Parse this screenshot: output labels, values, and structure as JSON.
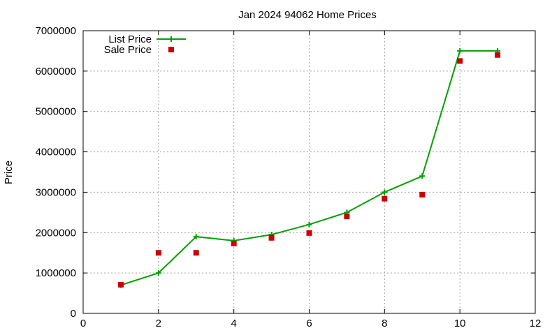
{
  "chart_data": {
    "type": "line",
    "title": "Jan 2024 94062 Home Prices",
    "xlabel": "",
    "ylabel": "Price",
    "xlim": [
      0,
      12
    ],
    "ylim": [
      0,
      7000000
    ],
    "x_ticks": [
      "0",
      "2",
      "4",
      "6",
      "8",
      "10",
      "12"
    ],
    "y_ticks": [
      "0",
      "1000000",
      "2000000",
      "3000000",
      "4000000",
      "5000000",
      "6000000",
      "7000000"
    ],
    "grid": true,
    "legend_position": "top-left",
    "series": [
      {
        "name": "List Price",
        "style": "line-with-plus-markers",
        "color": "#00a000",
        "x": [
          1,
          2,
          3,
          4,
          5,
          6,
          7,
          8,
          9,
          10,
          11
        ],
        "y": [
          700000,
          1000000,
          1900000,
          1800000,
          1950000,
          2200000,
          2500000,
          3000000,
          3400000,
          6500000,
          6500000
        ]
      },
      {
        "name": "Sale Price",
        "style": "square-markers",
        "color": "#cc0000",
        "x": [
          1,
          2,
          3,
          4,
          5,
          6,
          7,
          8,
          9,
          10,
          11
        ],
        "y": [
          710000,
          1500000,
          1500000,
          1730000,
          1870000,
          1990000,
          2400000,
          2840000,
          2940000,
          6250000,
          6400000
        ]
      }
    ]
  }
}
